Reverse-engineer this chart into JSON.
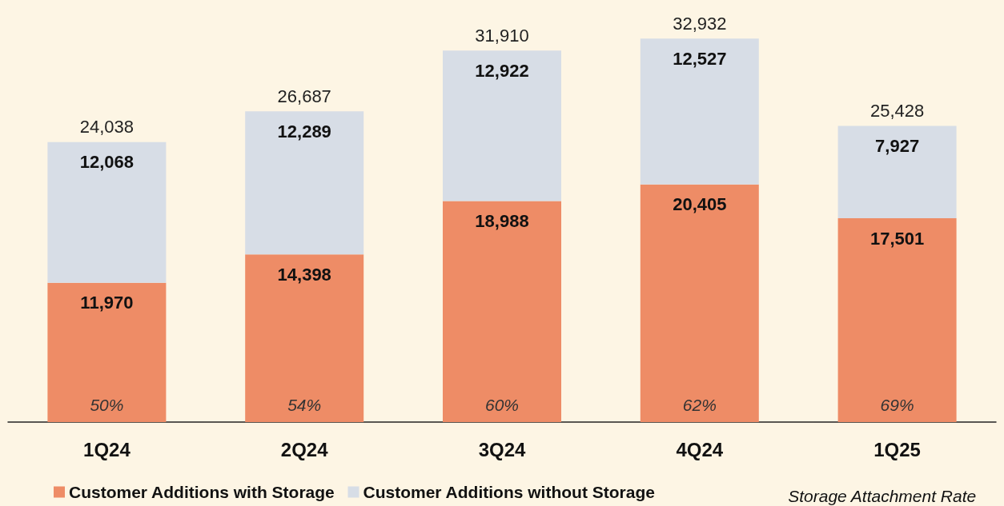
{
  "chart_data": {
    "type": "bar",
    "stacked": true,
    "categories": [
      "1Q24",
      "2Q24",
      "3Q24",
      "4Q24",
      "1Q25"
    ],
    "series": [
      {
        "name": "Customer Additions with Storage",
        "color": "#ee8c66",
        "values": [
          11970,
          14398,
          18988,
          20405,
          17501
        ],
        "value_labels": [
          "11,970",
          "14,398",
          "18,988",
          "20,405",
          "17,501"
        ]
      },
      {
        "name": "Customer Additions without Storage",
        "color": "#d7dde6",
        "values": [
          12068,
          12289,
          12922,
          12527,
          7927
        ],
        "value_labels": [
          "12,068",
          "12,289",
          "12,922",
          "12,527",
          "7,927"
        ]
      }
    ],
    "totals": [
      "24,038",
      "26,687",
      "31,910",
      "32,932",
      "25,428"
    ],
    "annotations": [
      "50%",
      "54%",
      "60%",
      "62%",
      "69%",
      "Storage Attachment Rate"
    ],
    "legend": "bottom"
  }
}
